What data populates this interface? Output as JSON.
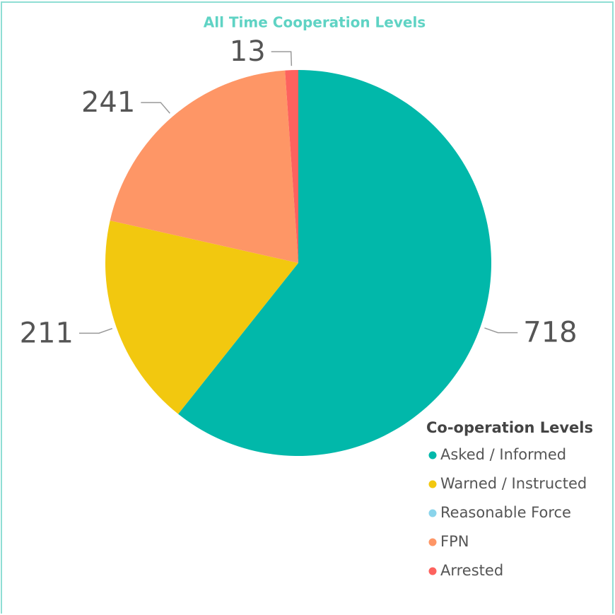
{
  "chart_data": {
    "type": "pie",
    "title": "All Time Cooperation Levels",
    "categories": [
      "Asked / Informed",
      "Warned / Instructed",
      "Reasonable Force",
      "FPN",
      "Arrested"
    ],
    "values": [
      718,
      211,
      0,
      241,
      13
    ],
    "colors": [
      "#01b8aa",
      "#f2c80f",
      "#8ad4eb",
      "#fe9666",
      "#fd625e"
    ],
    "legend_title": "Co-operation Levels",
    "legend": "bottom-right"
  }
}
